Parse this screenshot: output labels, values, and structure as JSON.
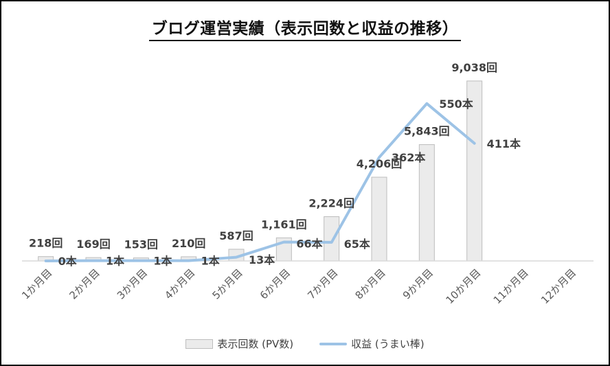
{
  "chart_data": {
    "type": "bar+line",
    "title": "ブログ運営実績（表示回数と収益の推移）",
    "categories": [
      "1か月目",
      "2か月目",
      "3か月目",
      "4か月目",
      "5か月目",
      "6か月目",
      "7か月目",
      "8か月目",
      "9か月目",
      "10か月目",
      "11か月目",
      "12か月目"
    ],
    "series": [
      {
        "name": "表示回数 (PV数)",
        "kind": "bar",
        "values": [
          218,
          169,
          153,
          210,
          587,
          1161,
          2224,
          4206,
          5843,
          9038,
          null,
          null
        ],
        "labels": [
          "218回",
          "169回",
          "153回",
          "210回",
          "587回",
          "1,161回",
          "2,224回",
          "4,206回",
          "5,843回",
          "9,038回",
          "",
          ""
        ],
        "color": "#ebebeb",
        "edge_color": "#bdbdbd"
      },
      {
        "name": "収益 (うまい棒)",
        "kind": "line",
        "values": [
          0,
          1,
          1,
          1,
          13,
          66,
          65,
          362,
          550,
          411,
          null,
          null
        ],
        "labels": [
          "0本",
          "1本",
          "1本",
          "1本",
          "13本",
          "66本",
          "65本",
          "362本",
          "550本",
          "411本",
          "",
          ""
        ],
        "color": "#9dc3e6"
      }
    ],
    "ylim_bars": [
      0,
      10000
    ],
    "ylim_line": [
      0,
      600
    ],
    "grid": false,
    "legend_position": "bottom"
  }
}
